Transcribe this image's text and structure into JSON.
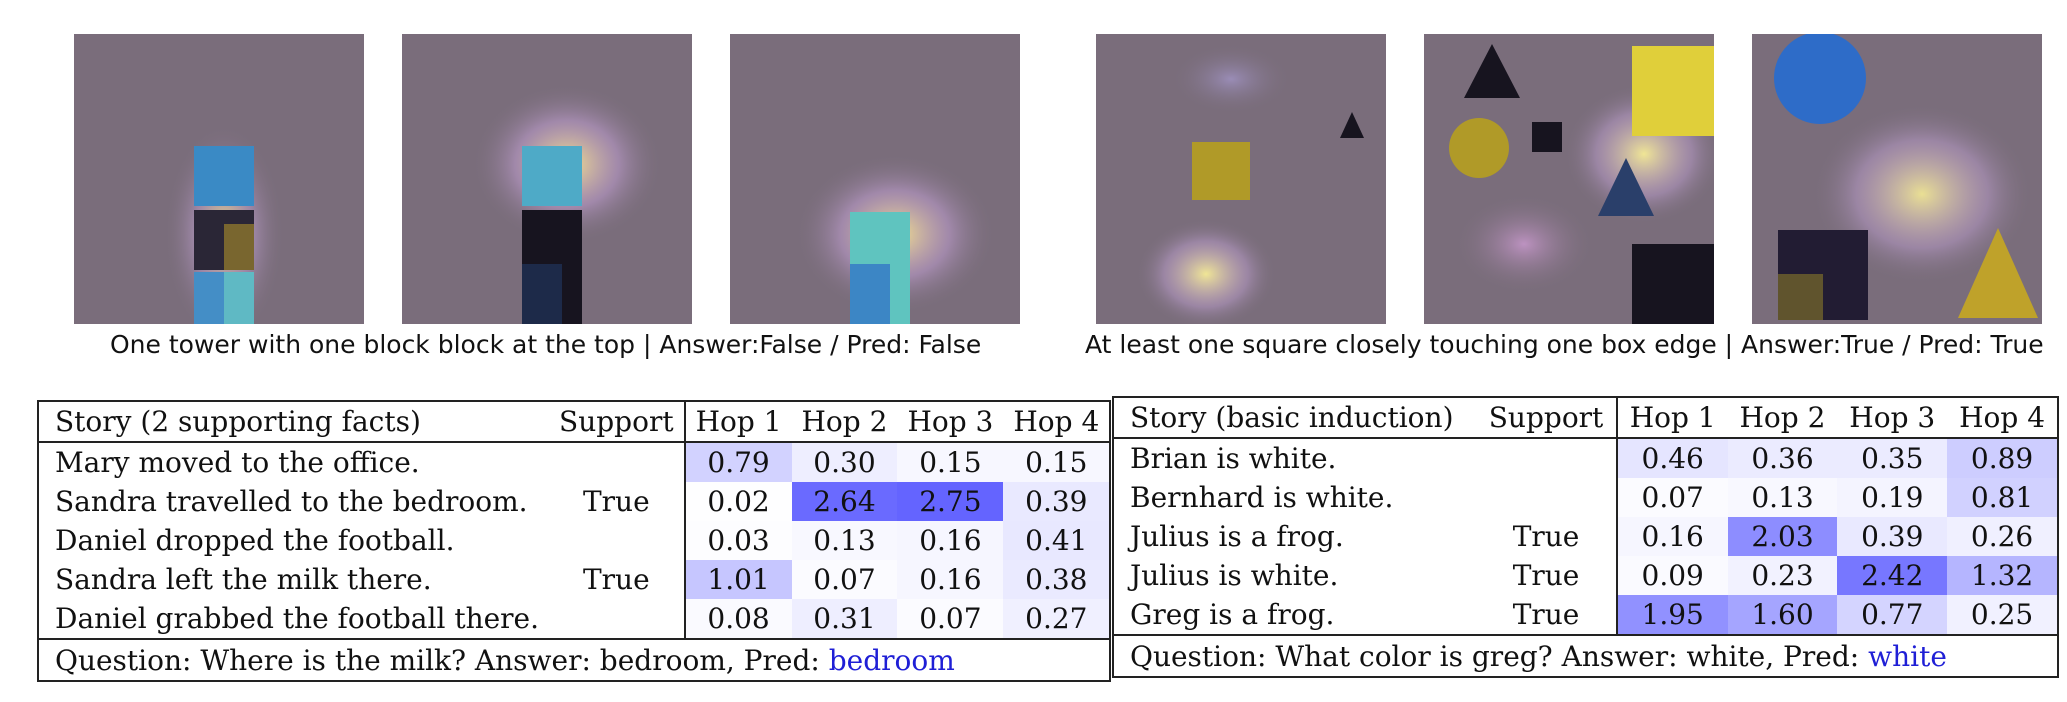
{
  "figure": {
    "caption_left": "One tower with one block block at the top | Answer:False / Pred: False",
    "caption_right": "At least one square closely touching one box edge | Answer:True / Pred: True"
  },
  "table_left": {
    "headers": [
      "Story (2 supporting facts)",
      "Support",
      "Hop 1",
      "Hop 2",
      "Hop 3",
      "Hop 4"
    ],
    "rows": [
      {
        "story": "Mary moved to the office.",
        "support": "",
        "hops": [
          "0.79",
          "0.30",
          "0.15",
          "0.15"
        ]
      },
      {
        "story": "Sandra travelled to the bedroom.",
        "support": "True",
        "hops": [
          "0.02",
          "2.64",
          "2.75",
          "0.39"
        ]
      },
      {
        "story": "Daniel dropped the football.",
        "support": "",
        "hops": [
          "0.03",
          "0.13",
          "0.16",
          "0.41"
        ]
      },
      {
        "story": "Sandra left the milk there.",
        "support": "True",
        "hops": [
          "1.01",
          "0.07",
          "0.16",
          "0.38"
        ]
      },
      {
        "story": "Daniel grabbed the football there.",
        "support": "",
        "hops": [
          "0.08",
          "0.31",
          "0.07",
          "0.27"
        ]
      }
    ],
    "question": "Question: Where is the milk? Answer: bedroom, Pred:",
    "pred": "bedroom"
  },
  "table_right": {
    "headers": [
      "Story (basic induction)",
      "Support",
      "Hop 1",
      "Hop 2",
      "Hop 3",
      "Hop 4"
    ],
    "rows": [
      {
        "story": "Brian is white.",
        "support": "",
        "hops": [
          "0.46",
          "0.36",
          "0.35",
          "0.89"
        ]
      },
      {
        "story": "Bernhard is white.",
        "support": "",
        "hops": [
          "0.07",
          "0.13",
          "0.19",
          "0.81"
        ]
      },
      {
        "story": "Julius is a frog.",
        "support": "True",
        "hops": [
          "0.16",
          "2.03",
          "0.39",
          "0.26"
        ]
      },
      {
        "story": "Julius is white.",
        "support": "True",
        "hops": [
          "0.09",
          "0.23",
          "2.42",
          "1.32"
        ]
      },
      {
        "story": "Greg is a frog.",
        "support": "True",
        "hops": [
          "1.95",
          "1.60",
          "0.77",
          "0.25"
        ]
      }
    ],
    "question": "Question: What color is greg? Answer: white, Pred:",
    "pred": "white"
  }
}
